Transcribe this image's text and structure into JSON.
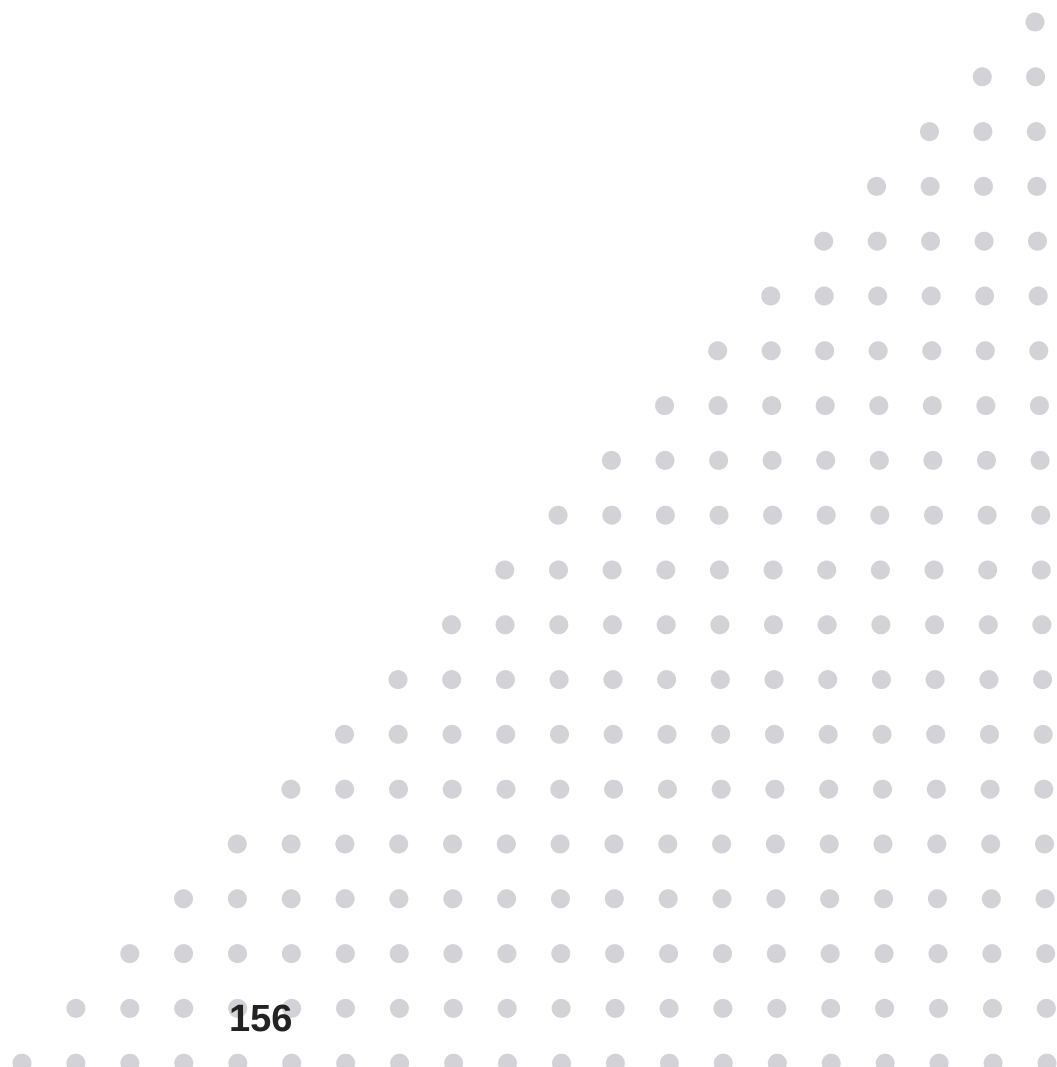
{
  "page": {
    "number": "156"
  },
  "decoration": {
    "pattern": "triangular-dot-grid",
    "dot_color": "#d2d2d7",
    "background": "#ffffff",
    "text_color": "#222222"
  }
}
